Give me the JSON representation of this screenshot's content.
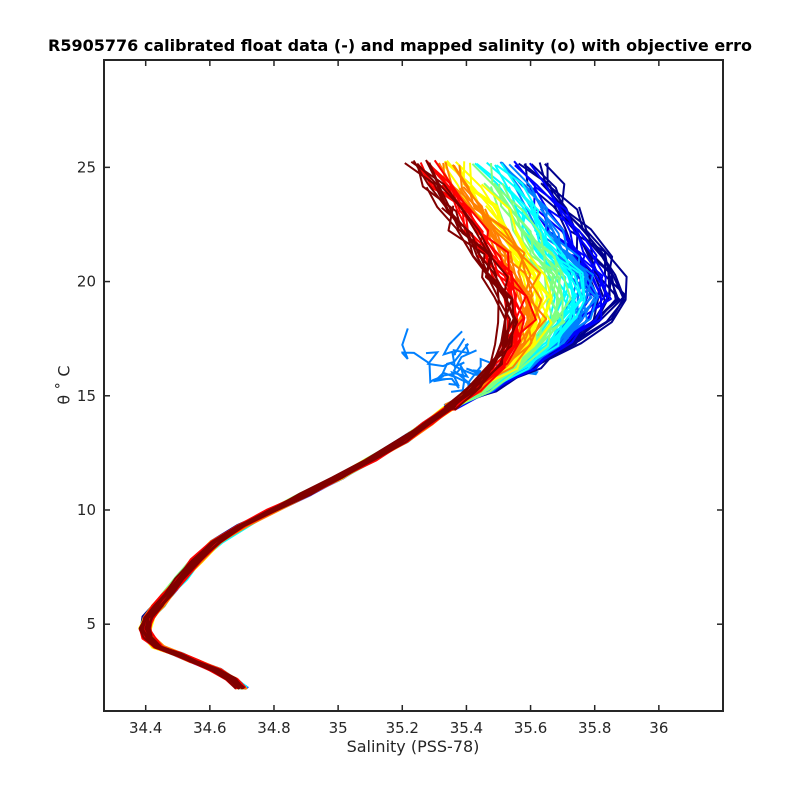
{
  "chart_data": {
    "type": "line",
    "title": "R5905776 calibrated float data (-) and mapped salinity (o) with objective erro",
    "xlabel": "Salinity (PSS-78)",
    "ylabel": "θ ˚ C",
    "xlim": [
      34.27,
      36.2
    ],
    "ylim": [
      1.2,
      29.7
    ],
    "xticks": [
      "34.4",
      "34.6",
      "34.8",
      "35",
      "35.2",
      "35.4",
      "35.6",
      "35.8",
      "36"
    ],
    "yticks": [
      "5",
      "10",
      "15",
      "20",
      "25"
    ],
    "grid": false,
    "colormap": "jet",
    "colors": [
      "#00008f",
      "#0000ff",
      "#0080ff",
      "#00ffff",
      "#80ff80",
      "#ffff00",
      "#ff8000",
      "#ff0000",
      "#800000"
    ],
    "series_count": 9,
    "deep_profile": [
      [
        34.7,
        2.2
      ],
      [
        34.67,
        2.6
      ],
      [
        34.62,
        3.0
      ],
      [
        34.55,
        3.4
      ],
      [
        34.5,
        3.7
      ],
      [
        34.44,
        4.0
      ],
      [
        34.41,
        4.4
      ],
      [
        34.4,
        4.8
      ],
      [
        34.41,
        5.3
      ],
      [
        34.44,
        5.8
      ],
      [
        34.47,
        6.3
      ],
      [
        34.51,
        7.0
      ],
      [
        34.56,
        7.8
      ],
      [
        34.62,
        8.6
      ],
      [
        34.7,
        9.3
      ],
      [
        34.8,
        10.0
      ],
      [
        34.9,
        10.7
      ],
      [
        35.0,
        11.4
      ],
      [
        35.1,
        12.2
      ],
      [
        35.2,
        13.0
      ],
      [
        35.28,
        13.8
      ],
      [
        35.35,
        14.5
      ]
    ],
    "upper_center": [
      [
        35.35,
        14.5
      ],
      [
        35.45,
        15.3
      ],
      [
        35.55,
        16.3
      ],
      [
        35.62,
        17.3
      ],
      [
        35.67,
        18.3
      ],
      [
        35.68,
        19.3
      ],
      [
        35.66,
        20.3
      ],
      [
        35.62,
        21.2
      ],
      [
        35.57,
        22.2
      ],
      [
        35.52,
        23.2
      ],
      [
        35.47,
        24.2
      ],
      [
        35.42,
        25.2
      ]
    ]
  }
}
